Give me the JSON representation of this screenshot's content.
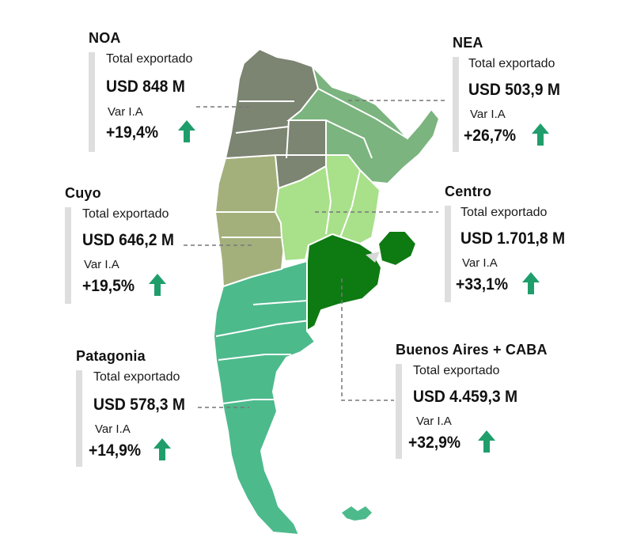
{
  "colors": {
    "up_arrow": "#1f9e6b",
    "noa": "#7c8472",
    "nea": "#7bb47e",
    "cuyo": "#a3b07c",
    "centro": "#a9e08a",
    "buenos_aires": "#0e7a12",
    "patagonia": "#4dba8c",
    "bar": "#dedede",
    "leader": "#777777"
  },
  "icons": {
    "trend": "arrow-up-icon"
  },
  "regions": [
    {
      "id": "noa",
      "name": "NOA",
      "total_label": "Total exportado",
      "value": "USD 848 M",
      "var_label": "Var I.A",
      "pct": "+19,4%"
    },
    {
      "id": "nea",
      "name": "NEA",
      "total_label": "Total exportado",
      "value": "USD 503,9 M",
      "var_label": "Var I.A",
      "pct": "+26,7%"
    },
    {
      "id": "cuyo",
      "name": "Cuyo",
      "total_label": "Total exportado",
      "value": "USD  646,2 M",
      "var_label": "Var I.A",
      "pct": "+19,5%"
    },
    {
      "id": "centro",
      "name": "Centro",
      "total_label": "Total exportado",
      "value": "USD 1.701,8 M",
      "var_label": "Var I.A",
      "pct": "+33,1%"
    },
    {
      "id": "patagonia",
      "name": "Patagonia",
      "total_label": "Total exportado",
      "value": "USD 578,3 M",
      "var_label": "Var I.A",
      "pct": "+14,9%"
    },
    {
      "id": "buenos_aires",
      "name": "Buenos Aires + CABA",
      "total_label": "Total exportado",
      "value": "USD 4.459,3 M",
      "var_label": "Var I.A",
      "pct": "+32,9%"
    }
  ]
}
